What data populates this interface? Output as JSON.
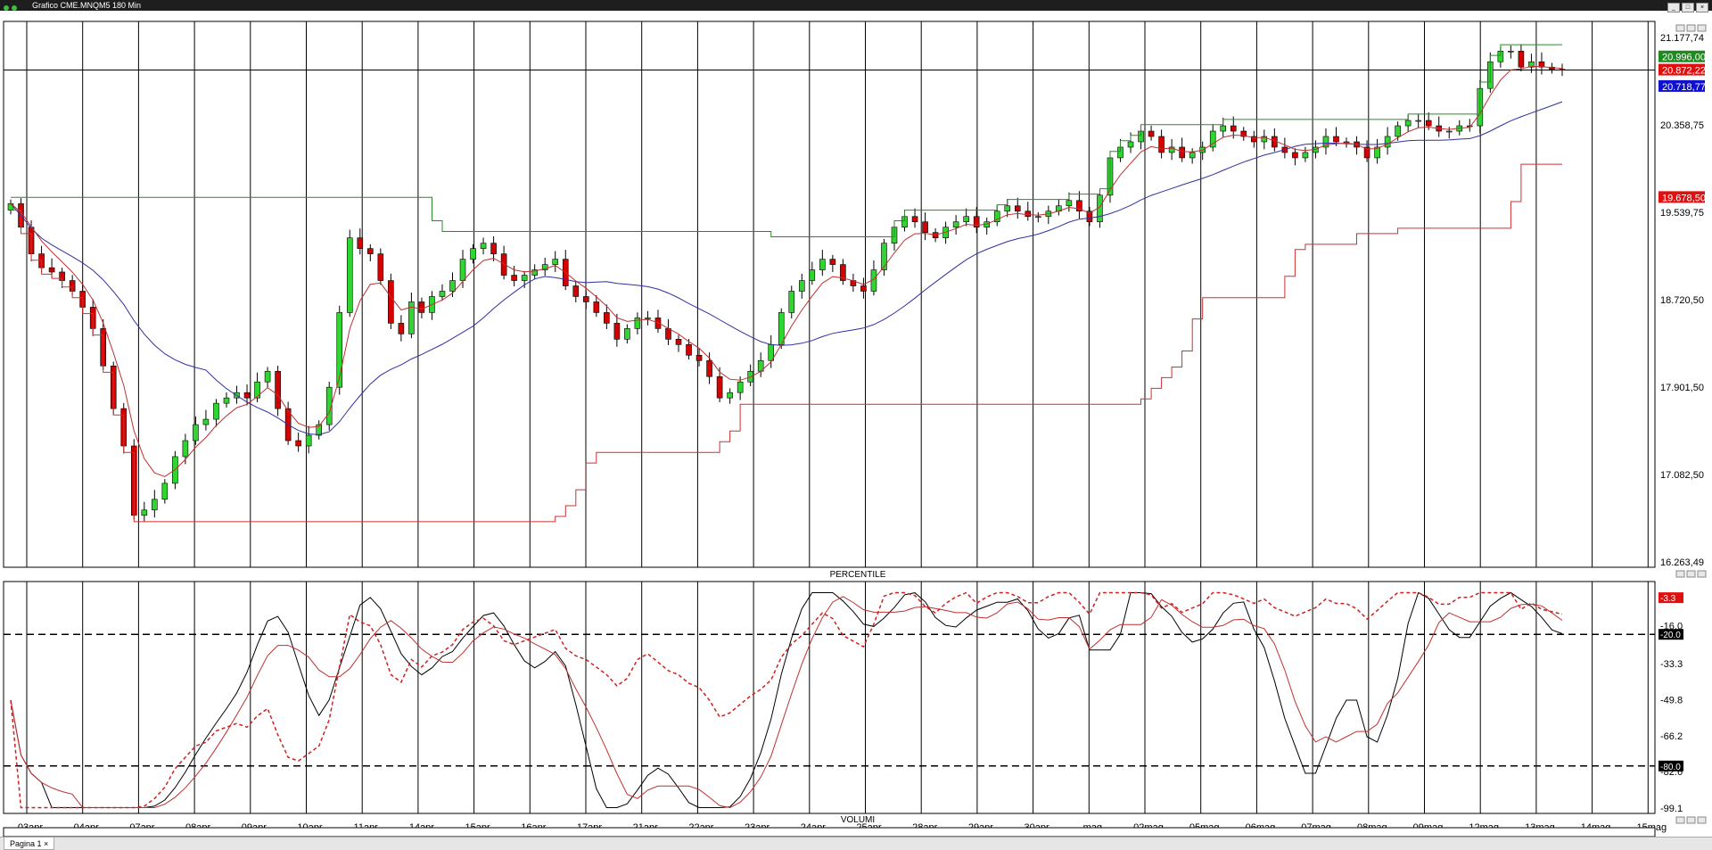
{
  "window": {
    "title": "Grafico CME.MNQM5 180 Min",
    "buttons": [
      "_",
      "□",
      "×"
    ]
  },
  "tabs": [
    {
      "label": "Pagina 1"
    }
  ],
  "panes": {
    "indicator_title": "PERCENTILE",
    "volume_title": "VOLUMI"
  },
  "chart_data": [
    {
      "type": "candlestick",
      "pane": "price",
      "title": "",
      "x_dates": [
        "03apr",
        "04apr",
        "07apr",
        "08apr",
        "09apr",
        "10apr",
        "11apr",
        "14apr",
        "15apr",
        "16apr",
        "17apr",
        "21apr",
        "22apr",
        "23apr",
        "24apr",
        "25apr",
        "28apr",
        "29apr",
        "30apr",
        "mag",
        "02mag",
        "05mag",
        "06mag",
        "07mag",
        "08mag",
        "09mag",
        "12mag",
        "13mag",
        "14mag",
        "15mag"
      ],
      "y_ticks": [
        21177.74,
        20358.75,
        19539.75,
        18720.5,
        17901.5,
        17082.5,
        16263.49
      ],
      "y_tick_labels": [
        "21.177,74",
        "20.358,75",
        "19.539,75",
        "18.720,50",
        "17.901,50",
        "17.082,50",
        "16.263,49"
      ],
      "ylim": [
        16263.49,
        21177.74
      ],
      "price_tags": [
        {
          "label": "20.996,00",
          "value": 20996.0,
          "color": "#1f8a1f"
        },
        {
          "label": "20.872,22",
          "value": 20872.22,
          "color": "#e01010"
        },
        {
          "label": "20.718,77",
          "value": 20718.77,
          "color": "#1010d0"
        },
        {
          "label": "19.678,50",
          "value": 19678.5,
          "color": "#e01010"
        }
      ],
      "crosshair_price": 20872.22,
      "candles_close": [
        19620,
        19400,
        19150,
        19020,
        18980,
        18900,
        18800,
        18650,
        18450,
        18100,
        17700,
        17350,
        16700,
        16750,
        16850,
        17000,
        17250,
        17400,
        17550,
        17600,
        17750,
        17800,
        17850,
        17800,
        17950,
        18050,
        17700,
        17400,
        17350,
        17450,
        17550,
        17900,
        18600,
        19300,
        19200,
        19150,
        18900,
        18500,
        18400,
        18700,
        18600,
        18750,
        18800,
        18900,
        19100,
        19200,
        19250,
        19150,
        18950,
        18900,
        18950,
        19000,
        19050,
        19100,
        18850,
        18750,
        18700,
        18600,
        18500,
        18350,
        18450,
        18550,
        18550,
        18450,
        18350,
        18300,
        18200,
        18150,
        18000,
        17800,
        17850,
        17950,
        18050,
        18150,
        18300,
        18600,
        18800,
        18900,
        19000,
        19100,
        19050,
        18900,
        18850,
        18800,
        19000,
        19250,
        19400,
        19500,
        19450,
        19350,
        19300,
        19400,
        19450,
        19500,
        19400,
        19450,
        19550,
        19600,
        19550,
        19500,
        19500,
        19550,
        19600,
        19650,
        19550,
        19450,
        19700,
        20050,
        20150,
        20200,
        20300,
        20250,
        20100,
        20150,
        20050,
        20100,
        20150,
        20300,
        20350,
        20300,
        20250,
        20200,
        20250,
        20150,
        20100,
        20050,
        20100,
        20150,
        20250,
        20200,
        20200,
        20150,
        20050,
        20150,
        20250,
        20350,
        20400,
        20400,
        20350,
        20300,
        20300,
        20350,
        20350,
        20700,
        20950,
        21050,
        21050,
        20900,
        20950,
        20900,
        20880,
        20872
      ]
    },
    {
      "type": "line",
      "pane": "indicator",
      "title": "PERCENTILE",
      "y_ticks": [
        -3.3,
        -16.0,
        -33.3,
        -49.8,
        -66.2,
        -82.6,
        -99.1
      ],
      "y_tick_labels": [
        "-3.3",
        "-16.0",
        "-33.3",
        "-49.8",
        "-66.2",
        "-82.6",
        "-99.1"
      ],
      "ylim": [
        -100,
        0
      ],
      "price_tags": [
        {
          "label": "-3.3",
          "value": -3.3,
          "color": "#e01010"
        },
        {
          "label": "-20.0",
          "value": -20.0,
          "color": "#000000"
        },
        {
          "label": "-80.0",
          "value": -80.0,
          "color": "#000000"
        }
      ],
      "levels": [
        -20,
        -80
      ]
    },
    {
      "type": "bar",
      "pane": "volume",
      "title": "VOLUMI"
    }
  ]
}
